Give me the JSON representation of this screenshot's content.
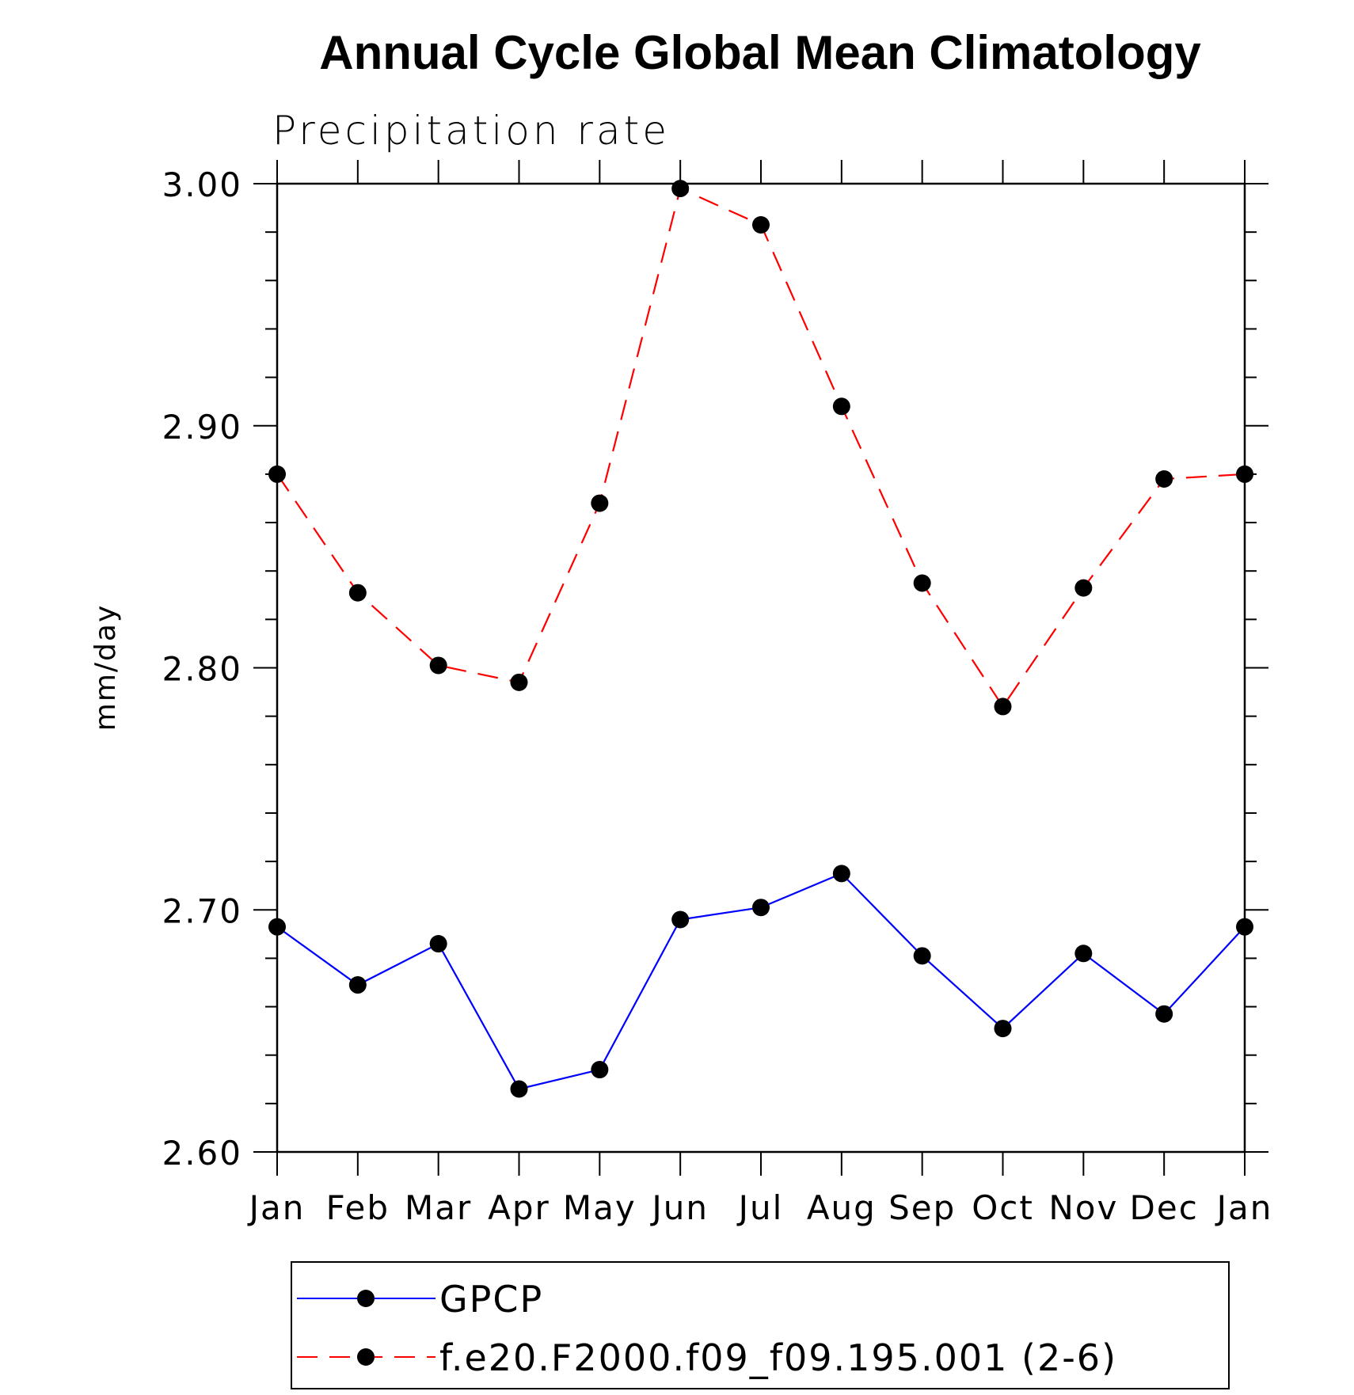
{
  "chart_data": {
    "type": "line",
    "title": "Annual Cycle Global Mean Climatology",
    "subtitle": "Precipitation rate",
    "xlabel": "",
    "ylabel": "mm/day",
    "categories": [
      "Jan",
      "Feb",
      "Mar",
      "Apr",
      "May",
      "Jun",
      "Jul",
      "Aug",
      "Sep",
      "Oct",
      "Nov",
      "Dec",
      "Jan"
    ],
    "ylim": [
      2.6,
      3.0
    ],
    "yticks": [
      2.6,
      2.7,
      2.8,
      2.9,
      3.0
    ],
    "ytick_labels": [
      "2.60",
      "2.70",
      "2.80",
      "2.90",
      "3.00"
    ],
    "y_minor_step": 0.02,
    "grid": false,
    "legend_position": "bottom",
    "series": [
      {
        "name": "GPCP",
        "color": "#0000ff",
        "line_style": "solid",
        "marker": "filled-circle",
        "values": [
          2.693,
          2.669,
          2.686,
          2.626,
          2.634,
          2.696,
          2.701,
          2.715,
          2.681,
          2.651,
          2.682,
          2.657,
          2.693
        ]
      },
      {
        "name": "f.e20.F2000.f09_f09.195.001 (2-6)",
        "color": "#ff0000",
        "line_style": "dashed",
        "marker": "filled-circle",
        "values": [
          2.88,
          2.831,
          2.801,
          2.794,
          2.868,
          2.998,
          2.983,
          2.908,
          2.835,
          2.784,
          2.833,
          2.878,
          2.88
        ]
      }
    ]
  }
}
